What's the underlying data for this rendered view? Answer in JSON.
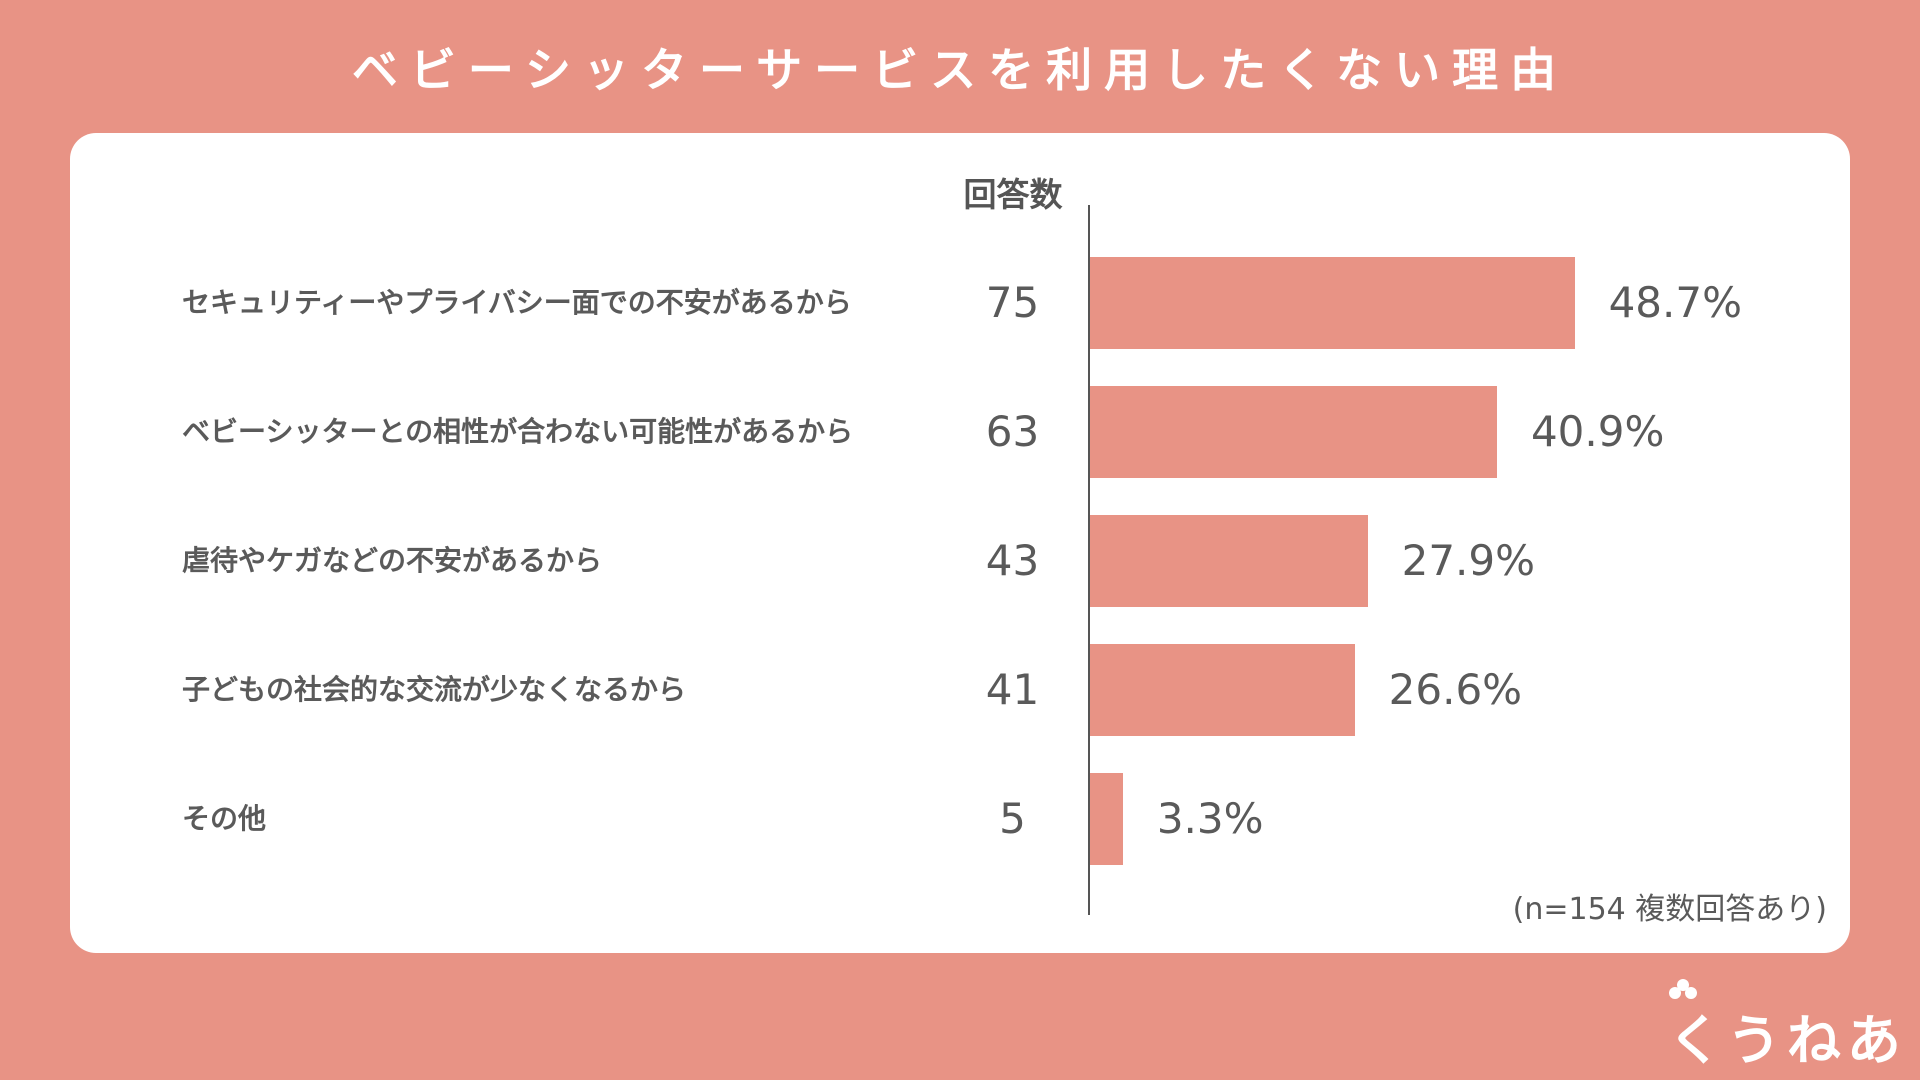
{
  "title": "ベビーシッターサービスを利用したくない理由",
  "column_header": "回答数",
  "note": "(n=154 複数回答あり)",
  "logo_text": "くうねあ",
  "colors": {
    "background": "#E89385",
    "bar": "#E89385",
    "card": "#ffffff",
    "text": "#5a5a5a"
  },
  "chart_data": {
    "type": "bar",
    "orientation": "horizontal",
    "title": "ベビーシッターサービスを利用したくない理由",
    "categories": [
      "セキュリティーやプライバシー面での不安があるから",
      "ベビーシッターとの相性が合わない可能性があるから",
      "虐待やケガなどの不安があるから",
      "子どもの社会的な交流が少なくなるから",
      "その他"
    ],
    "counts": [
      75,
      63,
      43,
      41,
      5
    ],
    "values": [
      48.7,
      40.9,
      27.9,
      26.6,
      3.3
    ],
    "value_labels": [
      "48.7%",
      "40.9%",
      "27.9%",
      "26.6%",
      "3.3%"
    ],
    "count_label": "回答数",
    "grid": false
  }
}
